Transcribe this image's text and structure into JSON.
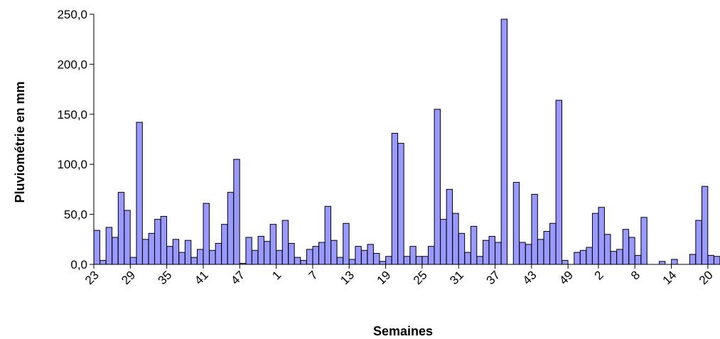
{
  "chart_data": {
    "type": "bar",
    "title": "",
    "xlabel": "Semaines",
    "ylabel": "Pluviométrie en mm",
    "ylim": [
      0,
      250
    ],
    "yticks": [
      "0,0",
      "50,0",
      "100,0",
      "150,0",
      "200,0",
      "250,0"
    ],
    "ytick_values": [
      0,
      50,
      100,
      150,
      200,
      250
    ],
    "grid": false,
    "legend": "none",
    "bar_color": "#9999FF",
    "bar_edge_color": "#000000",
    "categories": [
      "23",
      "24",
      "25",
      "26",
      "27",
      "28",
      "29",
      "30",
      "31",
      "32",
      "33",
      "34",
      "35",
      "36",
      "37",
      "38",
      "39",
      "40",
      "41",
      "42",
      "43",
      "44",
      "45",
      "46",
      "47",
      "48",
      "49",
      "50",
      "51",
      "52",
      "1",
      "2",
      "3",
      "4",
      "5",
      "6",
      "7",
      "8",
      "9",
      "10",
      "11",
      "12",
      "13",
      "14",
      "15",
      "16",
      "17",
      "18",
      "19",
      "20",
      "21",
      "22",
      "23",
      "24",
      "25",
      "26",
      "27",
      "28",
      "29",
      "30",
      "31",
      "32",
      "33",
      "34",
      "35",
      "36",
      "37",
      "38",
      "39",
      "40",
      "41",
      "42",
      "43",
      "44",
      "45",
      "46",
      "47",
      "48",
      "49",
      "50",
      "51",
      "52",
      "1",
      "2",
      "3",
      "4",
      "5",
      "6",
      "7",
      "8",
      "9",
      "10",
      "11",
      "12",
      "13",
      "14",
      "15",
      "16",
      "17",
      "18",
      "19",
      "20",
      "21"
    ],
    "tick_labels": [
      {
        "index": 0,
        "label": "23"
      },
      {
        "index": 6,
        "label": "29"
      },
      {
        "index": 12,
        "label": "35"
      },
      {
        "index": 18,
        "label": "41"
      },
      {
        "index": 24,
        "label": "47"
      },
      {
        "index": 30,
        "label": "1"
      },
      {
        "index": 36,
        "label": "7"
      },
      {
        "index": 42,
        "label": "13"
      },
      {
        "index": 48,
        "label": "19"
      },
      {
        "index": 54,
        "label": "25"
      },
      {
        "index": 60,
        "label": "31"
      },
      {
        "index": 66,
        "label": "37"
      },
      {
        "index": 72,
        "label": "43"
      },
      {
        "index": 78,
        "label": "49"
      },
      {
        "index": 83,
        "label": "2"
      },
      {
        "index": 89,
        "label": "8"
      },
      {
        "index": 95,
        "label": "14"
      },
      {
        "index": 101,
        "label": "20"
      }
    ],
    "values": [
      34,
      4,
      37,
      27,
      72,
      54,
      7,
      142,
      25,
      31,
      45,
      48,
      18,
      25,
      12,
      24,
      7,
      15,
      61,
      14,
      21,
      40,
      72,
      105,
      1,
      27,
      14,
      28,
      23,
      40,
      14,
      44,
      21,
      7,
      4,
      15,
      18,
      22,
      58,
      24,
      7,
      41,
      5,
      18,
      14,
      20,
      11,
      3,
      8,
      131,
      121,
      8,
      18,
      8,
      8,
      18,
      155,
      45,
      75,
      51,
      31,
      12,
      38,
      8,
      24,
      28,
      22,
      245,
      0,
      82,
      22,
      20,
      70,
      25,
      33,
      41,
      164,
      4,
      0,
      12,
      14,
      17,
      51,
      57,
      30,
      13,
      15,
      35,
      27,
      9,
      47,
      0,
      0,
      3,
      0,
      5,
      0,
      0,
      10,
      44,
      78,
      9,
      8
    ]
  }
}
